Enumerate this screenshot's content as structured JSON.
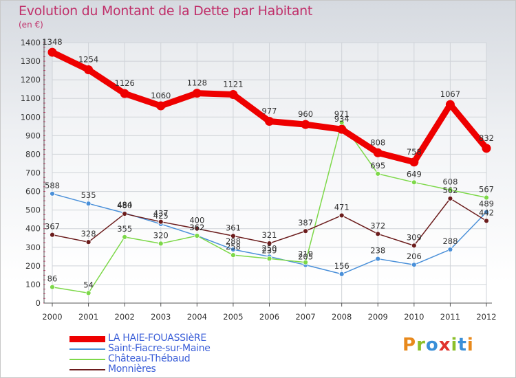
{
  "header": {
    "title": "Evolution du Montant de la Dette par Habitant",
    "unit": "(en €)"
  },
  "logo": {
    "text": "Proxiti",
    "colors": [
      "#e8891c",
      "#8cbf2a",
      "#3a8fd8",
      "#e0332d",
      "#8cbf2a",
      "#3a8fd8",
      "#e8891c"
    ]
  },
  "chart_data": {
    "type": "line",
    "title": "Evolution du Montant de la Dette par Habitant",
    "ylabel": "(en €)",
    "xlabel": "",
    "x": [
      "2000",
      "2001",
      "2002",
      "2003",
      "2004",
      "2005",
      "2006",
      "2007",
      "2008",
      "2009",
      "2010",
      "2011",
      "2012"
    ],
    "ylim": [
      0,
      1400
    ],
    "yticks": [
      0,
      100,
      200,
      300,
      400,
      500,
      600,
      700,
      800,
      900,
      1000,
      1100,
      1200,
      1300,
      1400
    ],
    "grid": true,
    "legend_position": "bottom-left",
    "series": [
      {
        "name": "LA HAIE-FOUASSIèRE",
        "color": "#ee0000",
        "values": [
          1348,
          1254,
          1126,
          1060,
          1128,
          1121,
          977,
          960,
          934,
          808,
          758,
          1067,
          832
        ]
      },
      {
        "name": "Saint-Fiacre-sur-Maine",
        "color": "#4a90d9",
        "values": [
          588,
          535,
          484,
          425,
          362,
          288,
          250,
          205,
          156,
          238,
          206,
          288,
          489
        ]
      },
      {
        "name": "Château-Thébaud",
        "color": "#7dd849",
        "values": [
          86,
          54,
          355,
          320,
          362,
          258,
          239,
          219,
          971,
          695,
          649,
          608,
          567
        ]
      },
      {
        "name": "Monnières",
        "color": "#6b1c1c",
        "values": [
          367,
          328,
          480,
          437,
          400,
          361,
          321,
          387,
          471,
          372,
          309,
          562,
          442
        ]
      }
    ]
  }
}
